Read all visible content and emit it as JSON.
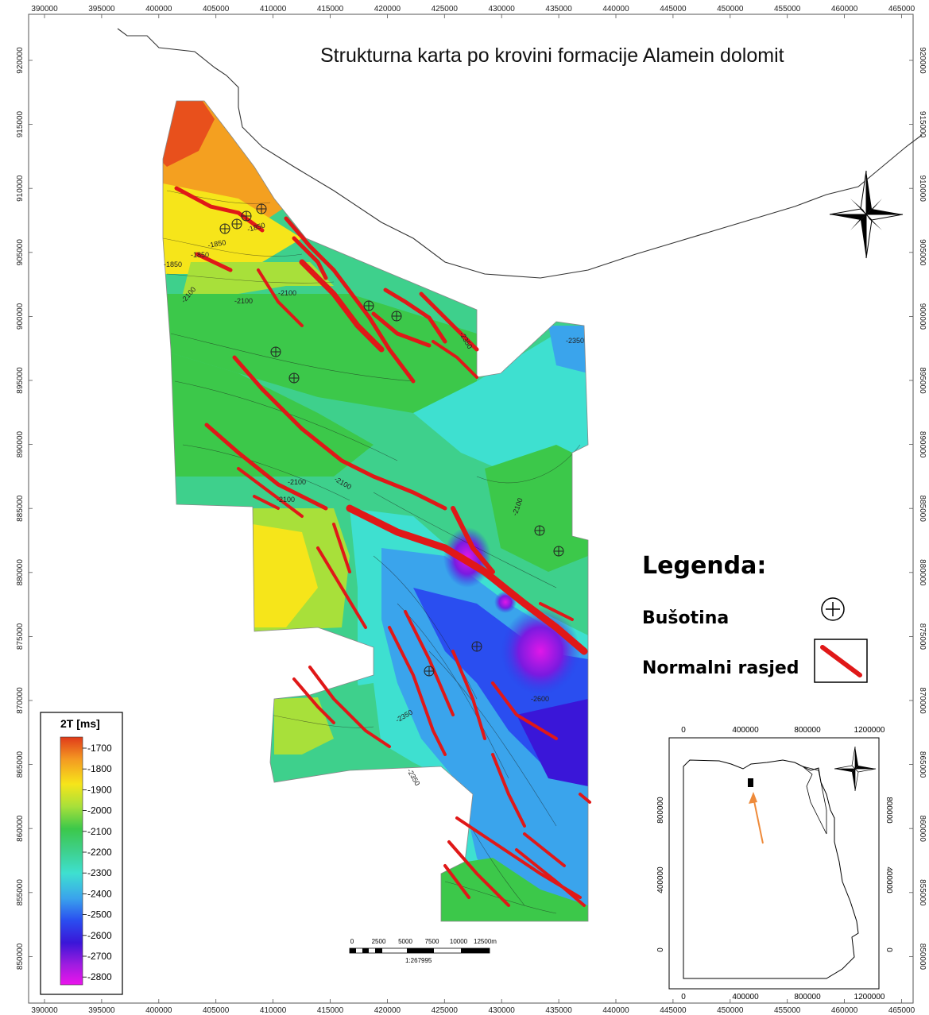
{
  "map": {
    "title": "Strukturna karta po krovini formacije Alamein dolomit",
    "x_ticks": [
      "390000",
      "395000",
      "400000",
      "405000",
      "410000",
      "415000",
      "420000",
      "425000",
      "430000",
      "435000",
      "440000",
      "445000",
      "450000",
      "455000",
      "460000",
      "465000"
    ],
    "y_ticks": [
      "920000",
      "915000",
      "910000",
      "905000",
      "900000",
      "895000",
      "890000",
      "885000",
      "880000",
      "875000",
      "870000",
      "865000",
      "860000",
      "855000",
      "850000"
    ],
    "contour_labels": [
      "-1850",
      "-1850",
      "-1850",
      "-1850",
      "-2100",
      "-2100",
      "-2100",
      "-2100",
      "-2100",
      "-2100",
      "-2100",
      "-2350",
      "-2350",
      "-2350",
      "-2350",
      "-2600"
    ],
    "icons": [
      "compass-rose-icon",
      "well-marker-icon",
      "fault-line-icon",
      "location-arrow-icon"
    ]
  },
  "colorbar": {
    "title": "2T [ms]",
    "labels": [
      "-1700",
      "-1800",
      "-1900",
      "-2000",
      "-2100",
      "-2200",
      "-2300",
      "-2400",
      "-2500",
      "-2600",
      "-2700",
      "-2800"
    ],
    "colors": [
      "#e8501c",
      "#f4a020",
      "#f6e51a",
      "#a8e03a",
      "#3cc84a",
      "#3ed08c",
      "#3ee0d0",
      "#3aa4ec",
      "#2a4ef0",
      "#3a16d8",
      "#a01ce0",
      "#ec14ec"
    ]
  },
  "legend": {
    "title": "Legenda:",
    "well_label": "Bušotina",
    "fault_label": "Normalni rasjed",
    "fault_color": "#e01818"
  },
  "scale_bar": {
    "labels": [
      "0",
      "2500",
      "5000",
      "7500",
      "10000",
      "12500m"
    ],
    "ratio": "1:267995"
  },
  "inset": {
    "x_ticks": [
      "0",
      "400000",
      "800000",
      "1200000"
    ],
    "y_ticks": [
      "800000",
      "400000",
      "0"
    ],
    "arrow_color": "#ee8a3a"
  }
}
